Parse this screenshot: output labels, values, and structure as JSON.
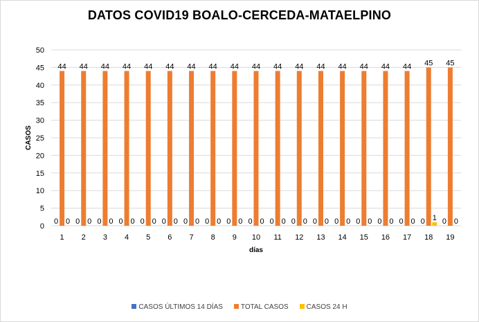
{
  "chart_data": {
    "type": "bar",
    "title": "DATOS COVID19 BOALO-CERCEDA-MATAELPINO",
    "xlabel": "días",
    "ylabel": "CASOS",
    "ylim": [
      0,
      50
    ],
    "yticks": [
      0,
      5,
      10,
      15,
      20,
      25,
      30,
      35,
      40,
      45,
      50
    ],
    "grid": true,
    "legend": "bottom",
    "categories": [
      "1",
      "2",
      "3",
      "4",
      "5",
      "6",
      "7",
      "8",
      "9",
      "10",
      "11",
      "12",
      "13",
      "14",
      "15",
      "16",
      "17",
      "18",
      "19"
    ],
    "series": [
      {
        "name": "CASOS ÚLTIMOS 14 DÍAS",
        "color": "#4472c4",
        "values": [
          0,
          0,
          0,
          0,
          0,
          0,
          0,
          0,
          0,
          0,
          0,
          0,
          0,
          0,
          0,
          0,
          0,
          0,
          0
        ]
      },
      {
        "name": "TOTAL CASOS",
        "color": "#ed7d31",
        "values": [
          44,
          44,
          44,
          44,
          44,
          44,
          44,
          44,
          44,
          44,
          44,
          44,
          44,
          44,
          44,
          44,
          44,
          45,
          45
        ]
      },
      {
        "name": "CASOS 24 H",
        "color": "#ffc000",
        "values": [
          0,
          0,
          0,
          0,
          0,
          0,
          0,
          0,
          0,
          0,
          0,
          0,
          0,
          0,
          0,
          0,
          0,
          1,
          0
        ]
      }
    ]
  }
}
